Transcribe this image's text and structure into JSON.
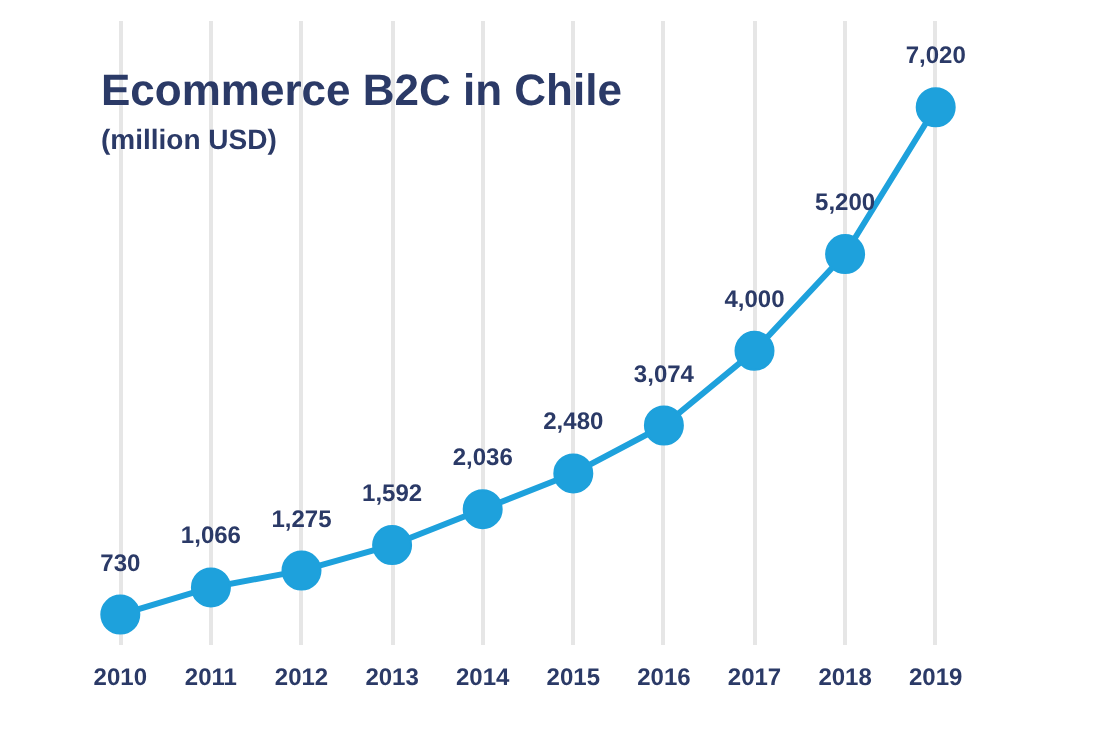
{
  "chart_data": {
    "type": "line",
    "title": "Ecommerce B2C in Chile",
    "subtitle": "(million USD)",
    "categories": [
      "2010",
      "2011",
      "2012",
      "2013",
      "2014",
      "2015",
      "2016",
      "2017",
      "2018",
      "2019"
    ],
    "series": [
      {
        "color": "#1ea1dc",
        "values": [
          730,
          1066,
          1275,
          1592,
          2036,
          2480,
          3074,
          4000,
          5200,
          7020
        ],
        "value_labels": [
          "730",
          "1,066",
          "1,275",
          "1,592",
          "2,036",
          "2,480",
          "3,074",
          "4,000",
          "5,200",
          "7,020"
        ]
      }
    ],
    "marker": "circle",
    "line_style": "solid",
    "grid": "x",
    "tick_labels": "x"
  }
}
